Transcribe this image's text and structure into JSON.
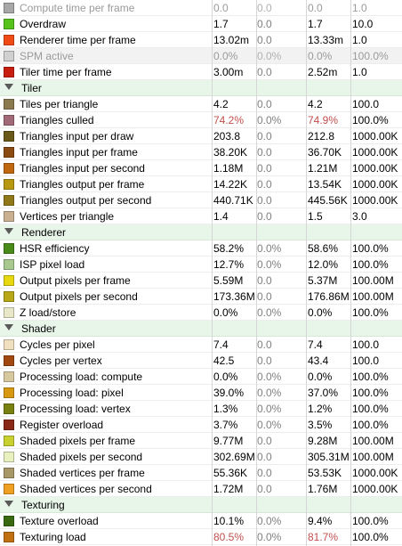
{
  "rows": [
    {
      "type": "metric",
      "name": "Compute time per frame",
      "color": "#a8a8a8",
      "v1": "0.0",
      "v2": "0.0",
      "v3": "0.0",
      "v4": "1.0",
      "dim": true
    },
    {
      "type": "metric",
      "name": "Overdraw",
      "color": "#56c21c",
      "v1": "1.7",
      "v2": "0.0",
      "v3": "1.7",
      "v4": "10.0"
    },
    {
      "type": "metric",
      "name": "Renderer time per frame",
      "color": "#f04a16",
      "v1": "13.02m",
      "v2": "0.0",
      "v3": "13.33m",
      "v4": "1.0"
    },
    {
      "type": "metric",
      "name": "SPM active",
      "color": "#d0d0d0",
      "v1": "0.0%",
      "v2": "0.0%",
      "v3": "0.0%",
      "v4": "100.0%",
      "dim": true
    },
    {
      "type": "metric",
      "name": "Tiler time per frame",
      "color": "#c81e10",
      "v1": "3.00m",
      "v2": "0.0",
      "v3": "2.52m",
      "v4": "1.0"
    },
    {
      "type": "group",
      "name": "Tiler"
    },
    {
      "type": "metric",
      "name": "Tiles per triangle",
      "color": "#8b7a50",
      "v1": "4.2",
      "v2": "0.0",
      "v3": "4.2",
      "v4": "100.0"
    },
    {
      "type": "metric",
      "name": "Triangles culled",
      "color": "#a26a78",
      "v1": "74.2%",
      "v2": "0.0%",
      "v3": "74.9%",
      "v4": "100.0%",
      "warn": true
    },
    {
      "type": "metric",
      "name": "Triangles input per draw",
      "color": "#6a5818",
      "v1": "203.8",
      "v2": "0.0",
      "v3": "212.8",
      "v4": "1000.00K"
    },
    {
      "type": "metric",
      "name": "Triangles input per frame",
      "color": "#8a4a10",
      "v1": "38.20K",
      "v2": "0.0",
      "v3": "36.70K",
      "v4": "1000.00K"
    },
    {
      "type": "metric",
      "name": "Triangles input per second",
      "color": "#c06810",
      "v1": "1.18M",
      "v2": "0.0",
      "v3": "1.21M",
      "v4": "1000.00K"
    },
    {
      "type": "metric",
      "name": "Triangles output per frame",
      "color": "#b89810",
      "v1": "14.22K",
      "v2": "0.0",
      "v3": "13.54K",
      "v4": "1000.00K"
    },
    {
      "type": "metric",
      "name": "Triangles output per second",
      "color": "#907818",
      "v1": "440.71K",
      "v2": "0.0",
      "v3": "445.56K",
      "v4": "1000.00K"
    },
    {
      "type": "metric",
      "name": "Vertices per triangle",
      "color": "#c8b090",
      "v1": "1.4",
      "v2": "0.0",
      "v3": "1.5",
      "v4": "3.0"
    },
    {
      "type": "group",
      "name": "Renderer"
    },
    {
      "type": "metric",
      "name": "HSR efficiency",
      "color": "#4a8a18",
      "v1": "58.2%",
      "v2": "0.0%",
      "v3": "58.6%",
      "v4": "100.0%"
    },
    {
      "type": "metric",
      "name": "ISP pixel load",
      "color": "#a8c890",
      "v1": "12.7%",
      "v2": "0.0%",
      "v3": "12.0%",
      "v4": "100.0%"
    },
    {
      "type": "metric",
      "name": "Output pixels per frame",
      "color": "#e8d810",
      "v1": "5.59M",
      "v2": "0.0",
      "v3": "5.37M",
      "v4": "100.00M"
    },
    {
      "type": "metric",
      "name": "Output pixels per second",
      "color": "#b8a818",
      "v1": "173.36M",
      "v2": "0.0",
      "v3": "176.86M",
      "v4": "100.00M"
    },
    {
      "type": "metric",
      "name": "Z load/store",
      "color": "#e8e8c8",
      "v1": "0.0%",
      "v2": "0.0%",
      "v3": "0.0%",
      "v4": "100.0%"
    },
    {
      "type": "group",
      "name": "Shader"
    },
    {
      "type": "metric",
      "name": "Cycles per pixel",
      "color": "#f0e0c0",
      "v1": "7.4",
      "v2": "0.0",
      "v3": "7.4",
      "v4": "100.0"
    },
    {
      "type": "metric",
      "name": "Cycles per vertex",
      "color": "#a04810",
      "v1": "42.5",
      "v2": "0.0",
      "v3": "43.4",
      "v4": "100.0"
    },
    {
      "type": "metric",
      "name": "Processing load: compute",
      "color": "#d8c8a0",
      "v1": "0.0%",
      "v2": "0.0%",
      "v3": "0.0%",
      "v4": "100.0%"
    },
    {
      "type": "metric",
      "name": "Processing load: pixel",
      "color": "#d89810",
      "v1": "39.0%",
      "v2": "0.0%",
      "v3": "37.0%",
      "v4": "100.0%"
    },
    {
      "type": "metric",
      "name": "Processing load: vertex",
      "color": "#788010",
      "v1": "1.3%",
      "v2": "0.0%",
      "v3": "1.2%",
      "v4": "100.0%"
    },
    {
      "type": "metric",
      "name": "Register overload",
      "color": "#8a2818",
      "v1": "3.7%",
      "v2": "0.0%",
      "v3": "3.5%",
      "v4": "100.0%"
    },
    {
      "type": "metric",
      "name": "Shaded pixels per frame",
      "color": "#c8d030",
      "v1": "9.77M",
      "v2": "0.0",
      "v3": "9.28M",
      "v4": "100.00M"
    },
    {
      "type": "metric",
      "name": "Shaded pixels per second",
      "color": "#e8f0c0",
      "v1": "302.69M",
      "v2": "0.0",
      "v3": "305.31M",
      "v4": "100.00M"
    },
    {
      "type": "metric",
      "name": "Shaded vertices per frame",
      "color": "#a89868",
      "v1": "55.36K",
      "v2": "0.0",
      "v3": "53.53K",
      "v4": "1000.00K"
    },
    {
      "type": "metric",
      "name": "Shaded vertices per second",
      "color": "#f0a020",
      "v1": "1.72M",
      "v2": "0.0",
      "v3": "1.76M",
      "v4": "1000.00K"
    },
    {
      "type": "group",
      "name": "Texturing"
    },
    {
      "type": "metric",
      "name": "Texture overload",
      "color": "#3a6a10",
      "v1": "10.1%",
      "v2": "0.0%",
      "v3": "9.4%",
      "v4": "100.0%"
    },
    {
      "type": "metric",
      "name": "Texturing load",
      "color": "#c07010",
      "v1": "80.5%",
      "v2": "0.0%",
      "v3": "81.7%",
      "v4": "100.0%",
      "warn": true
    }
  ]
}
